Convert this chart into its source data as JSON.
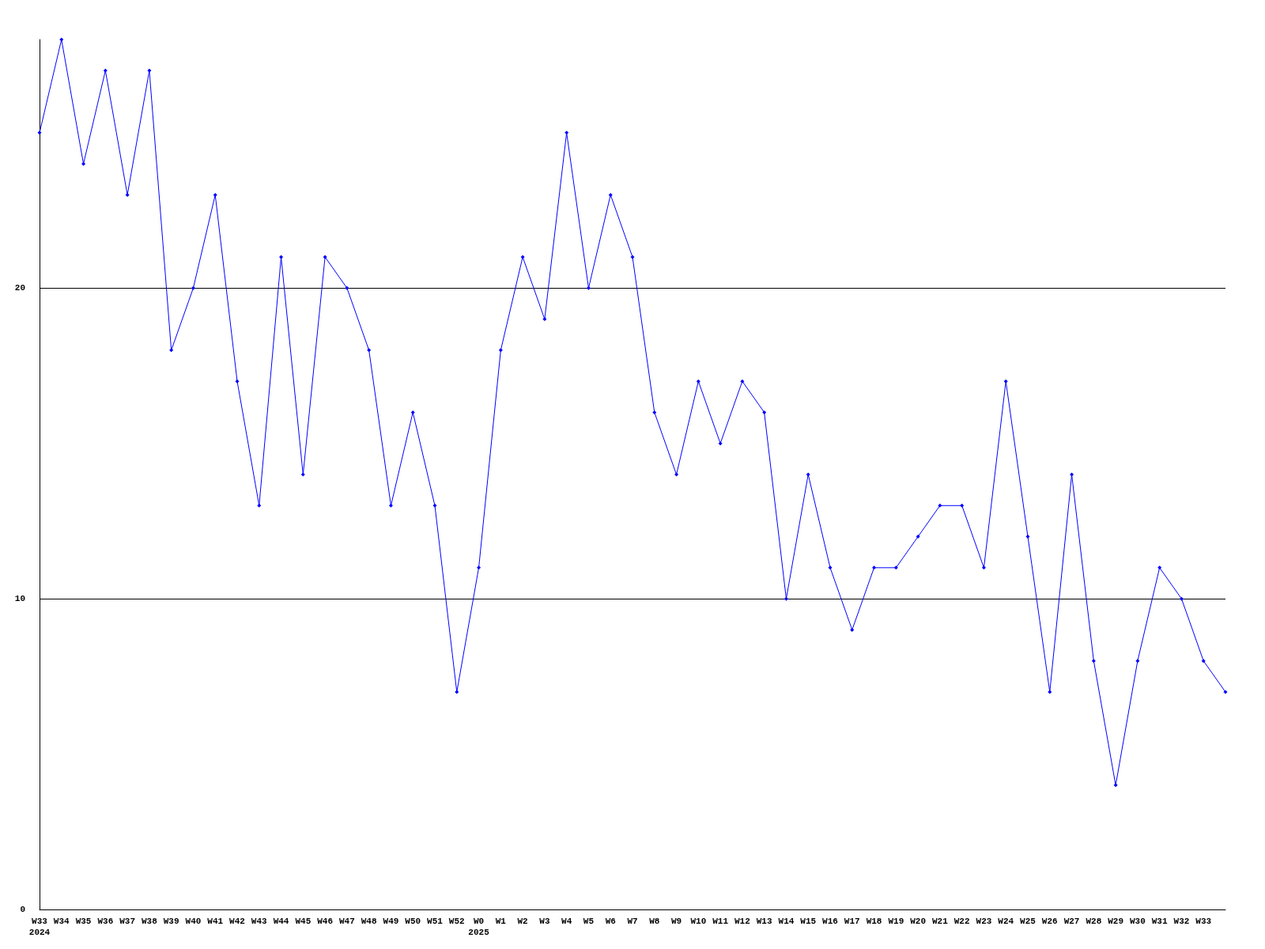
{
  "chart_data": {
    "type": "line",
    "categories": [
      "W33\n2024",
      "W34",
      "W35",
      "W36",
      "W37",
      "W38",
      "W39",
      "W40",
      "W41",
      "W42",
      "W43",
      "W44",
      "W45",
      "W46",
      "W47",
      "W48",
      "W49",
      "W50",
      "W51",
      "W52",
      "W0\n2025",
      "W1",
      "W2",
      "W3",
      "W4",
      "W5",
      "W6",
      "W7",
      "W8",
      "W9",
      "W10",
      "W11",
      "W12",
      "W13",
      "W14",
      "W15",
      "W16",
      "W17",
      "W18",
      "W19",
      "W20",
      "W21",
      "W22",
      "W23",
      "W24",
      "W25",
      "W26",
      "W27",
      "W28",
      "W29",
      "W30",
      "W31",
      "W32",
      "W33",
      null
    ],
    "series": [
      {
        "color": "#0000ff",
        "values": [
          25,
          28,
          24,
          27,
          23,
          27,
          18,
          20,
          23,
          17,
          13,
          21,
          14,
          21,
          20,
          18,
          13,
          16,
          13,
          7,
          11,
          18,
          21,
          19,
          25,
          20,
          23,
          21,
          16,
          14,
          17,
          15,
          17,
          16,
          10,
          14,
          11,
          9,
          11,
          11,
          12,
          13,
          13,
          11,
          17,
          12,
          7,
          14,
          8,
          4,
          8,
          11,
          10,
          8,
          7
        ]
      }
    ],
    "ylim": [
      0,
      28
    ],
    "yticks": [
      0,
      10,
      20
    ],
    "grid": "y",
    "marker": "diamond",
    "line_style": "solid"
  }
}
